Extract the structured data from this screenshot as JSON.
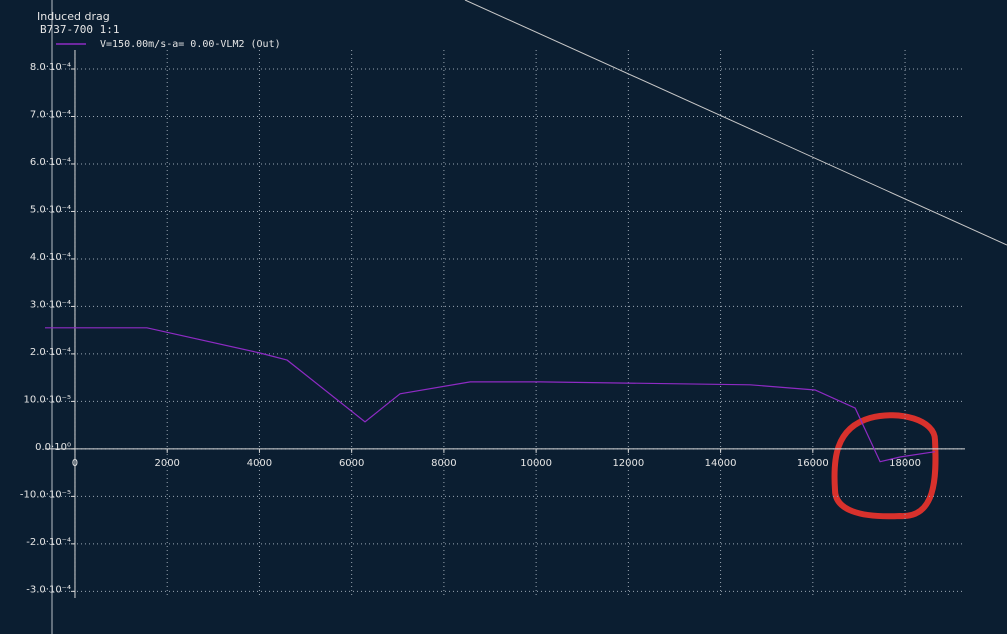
{
  "chart_data": {
    "type": "line",
    "title": "Induced drag",
    "subtitle": "B737-700 1:1",
    "x": [
      -650,
      1560,
      4010,
      4600,
      6290,
      7050,
      8570,
      10090,
      14640,
      16050,
      16920,
      17460,
      17890,
      18650
    ],
    "series": [
      {
        "name": "V=150.00m/s-a= 0.00-VLM2 (Out)",
        "color": "#8e2bc4",
        "values": [
          0.000255,
          0.000255,
          0.000202,
          0.000187,
          5.7e-05,
          0.000116,
          0.000141,
          0.000141,
          0.000135,
          0.000124,
          8.6e-05,
          -2.7e-05,
          -1.7e-05,
          -6e-06
        ]
      }
    ],
    "xlim": [
      -650,
      19300
    ],
    "ylim": [
      -0.000314,
      0.00084
    ],
    "xticks": [
      0,
      2000,
      4000,
      6000,
      8000,
      10000,
      12000,
      14000,
      16000,
      18000
    ],
    "yticks": [
      {
        "value": 0.0008,
        "label": "8.0·10⁻⁴"
      },
      {
        "value": 0.0007,
        "label": "7.0·10⁻⁴"
      },
      {
        "value": 0.0006,
        "label": "6.0·10⁻⁴"
      },
      {
        "value": 0.0005,
        "label": "5.0·10⁻⁴"
      },
      {
        "value": 0.0004,
        "label": "4.0·10⁻⁴"
      },
      {
        "value": 0.0003,
        "label": "3.0·10⁻⁴"
      },
      {
        "value": 0.0002,
        "label": "2.0·10⁻⁴"
      },
      {
        "value": 0.0001,
        "label": "10.0·10⁻⁵"
      },
      {
        "value": 0,
        "label": "0.0·10⁰"
      },
      {
        "value": -0.0001,
        "label": "-10.0·10⁻⁵"
      },
      {
        "value": -0.0002,
        "label": "-2.0·10⁻⁴"
      },
      {
        "value": -0.0003,
        "label": "-3.0·10⁻⁴"
      }
    ],
    "grid": true,
    "legend": "upper left"
  }
}
